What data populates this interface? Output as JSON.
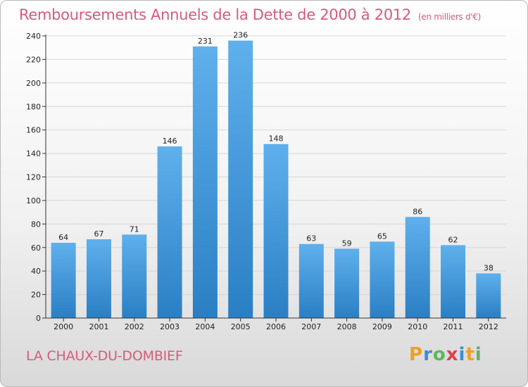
{
  "title": "Remboursements Annuels de la Dette de 2000 à 2012",
  "unit": "(en milliers d'€)",
  "commune": "LA CHAUX-DU-DOMBIEF",
  "logo": {
    "letters": [
      "P",
      "r",
      "o",
      "x",
      "i",
      "t",
      "i"
    ],
    "colors": [
      "#f0a020",
      "#3a8fd6",
      "#5cb85c",
      "#e04050",
      "#3a8fd6",
      "#f0a020",
      "#5cb85c"
    ]
  },
  "colors": {
    "bar_light": "#5fb0ec",
    "bar_dark": "#2a7fc4",
    "title": "#d65b7a"
  },
  "chart_data": {
    "type": "bar",
    "categories": [
      "2000",
      "2001",
      "2002",
      "2003",
      "2004",
      "2005",
      "2006",
      "2007",
      "2008",
      "2009",
      "2010",
      "2011",
      "2012"
    ],
    "values": [
      64,
      67,
      71,
      146,
      231,
      236,
      148,
      63,
      59,
      65,
      86,
      62,
      38
    ],
    "ylim": [
      0,
      240
    ],
    "yticks": [
      0,
      20,
      40,
      60,
      80,
      100,
      120,
      140,
      160,
      180,
      200,
      220,
      240
    ],
    "grid": true,
    "xlabel": "",
    "ylabel": ""
  }
}
